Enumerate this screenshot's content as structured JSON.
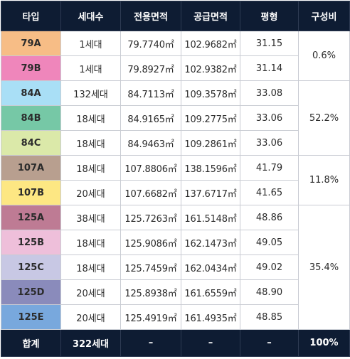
{
  "headers": [
    "타입",
    "세대수",
    "전용면적",
    "공급면적",
    "평형",
    "구성비"
  ],
  "rows": [
    {
      "type": "79A",
      "color": "#f7bd86",
      "units": "1세대",
      "exclusive": "79.7740㎡",
      "supply": "102.9682㎡",
      "pyeong": "31.15"
    },
    {
      "type": "79B",
      "color": "#ef86bb",
      "units": "1세대",
      "exclusive": "79.8927㎡",
      "supply": "102.9382㎡",
      "pyeong": "31.14"
    },
    {
      "type": "84A",
      "color": "#a9dff6",
      "units": "132세대",
      "exclusive": "84.7113㎡",
      "supply": "109.3578㎡",
      "pyeong": "33.08"
    },
    {
      "type": "84B",
      "color": "#76c8a6",
      "units": "18세대",
      "exclusive": "84.9165㎡",
      "supply": "109.2775㎡",
      "pyeong": "33.06"
    },
    {
      "type": "84C",
      "color": "#dbe9a9",
      "units": "18세대",
      "exclusive": "84.9463㎡",
      "supply": "109.2861㎡",
      "pyeong": "33.06"
    },
    {
      "type": "107A",
      "color": "#b89f8f",
      "units": "18세대",
      "exclusive": "107.8806㎡",
      "supply": "138.1596㎡",
      "pyeong": "41.79"
    },
    {
      "type": "107B",
      "color": "#fde783",
      "units": "20세대",
      "exclusive": "107.6682㎡",
      "supply": "137.6717㎡",
      "pyeong": "41.65"
    },
    {
      "type": "125A",
      "color": "#be7b94",
      "units": "38세대",
      "exclusive": "125.7263㎡",
      "supply": "161.5148㎡",
      "pyeong": "48.86"
    },
    {
      "type": "125B",
      "color": "#eebfda",
      "units": "18세대",
      "exclusive": "125.9086㎡",
      "supply": "162.1473㎡",
      "pyeong": "49.05"
    },
    {
      "type": "125C",
      "color": "#c8c8e4",
      "units": "18세대",
      "exclusive": "125.7459㎡",
      "supply": "162.0434㎡",
      "pyeong": "49.02"
    },
    {
      "type": "125D",
      "color": "#8a8bbb",
      "units": "20세대",
      "exclusive": "125.8938㎡",
      "supply": "161.6559㎡",
      "pyeong": "48.90"
    },
    {
      "type": "125E",
      "color": "#78a8dd",
      "units": "20세대",
      "exclusive": "125.4919㎡",
      "supply": "161.4935㎡",
      "pyeong": "48.85"
    }
  ],
  "ratios": [
    "0.6%",
    "52.2%",
    "11.8%",
    "35.4%"
  ],
  "total": {
    "label": "합계",
    "units": "322세대",
    "exclusive": "–",
    "supply": "–",
    "pyeong": "–",
    "ratio": "100%"
  }
}
